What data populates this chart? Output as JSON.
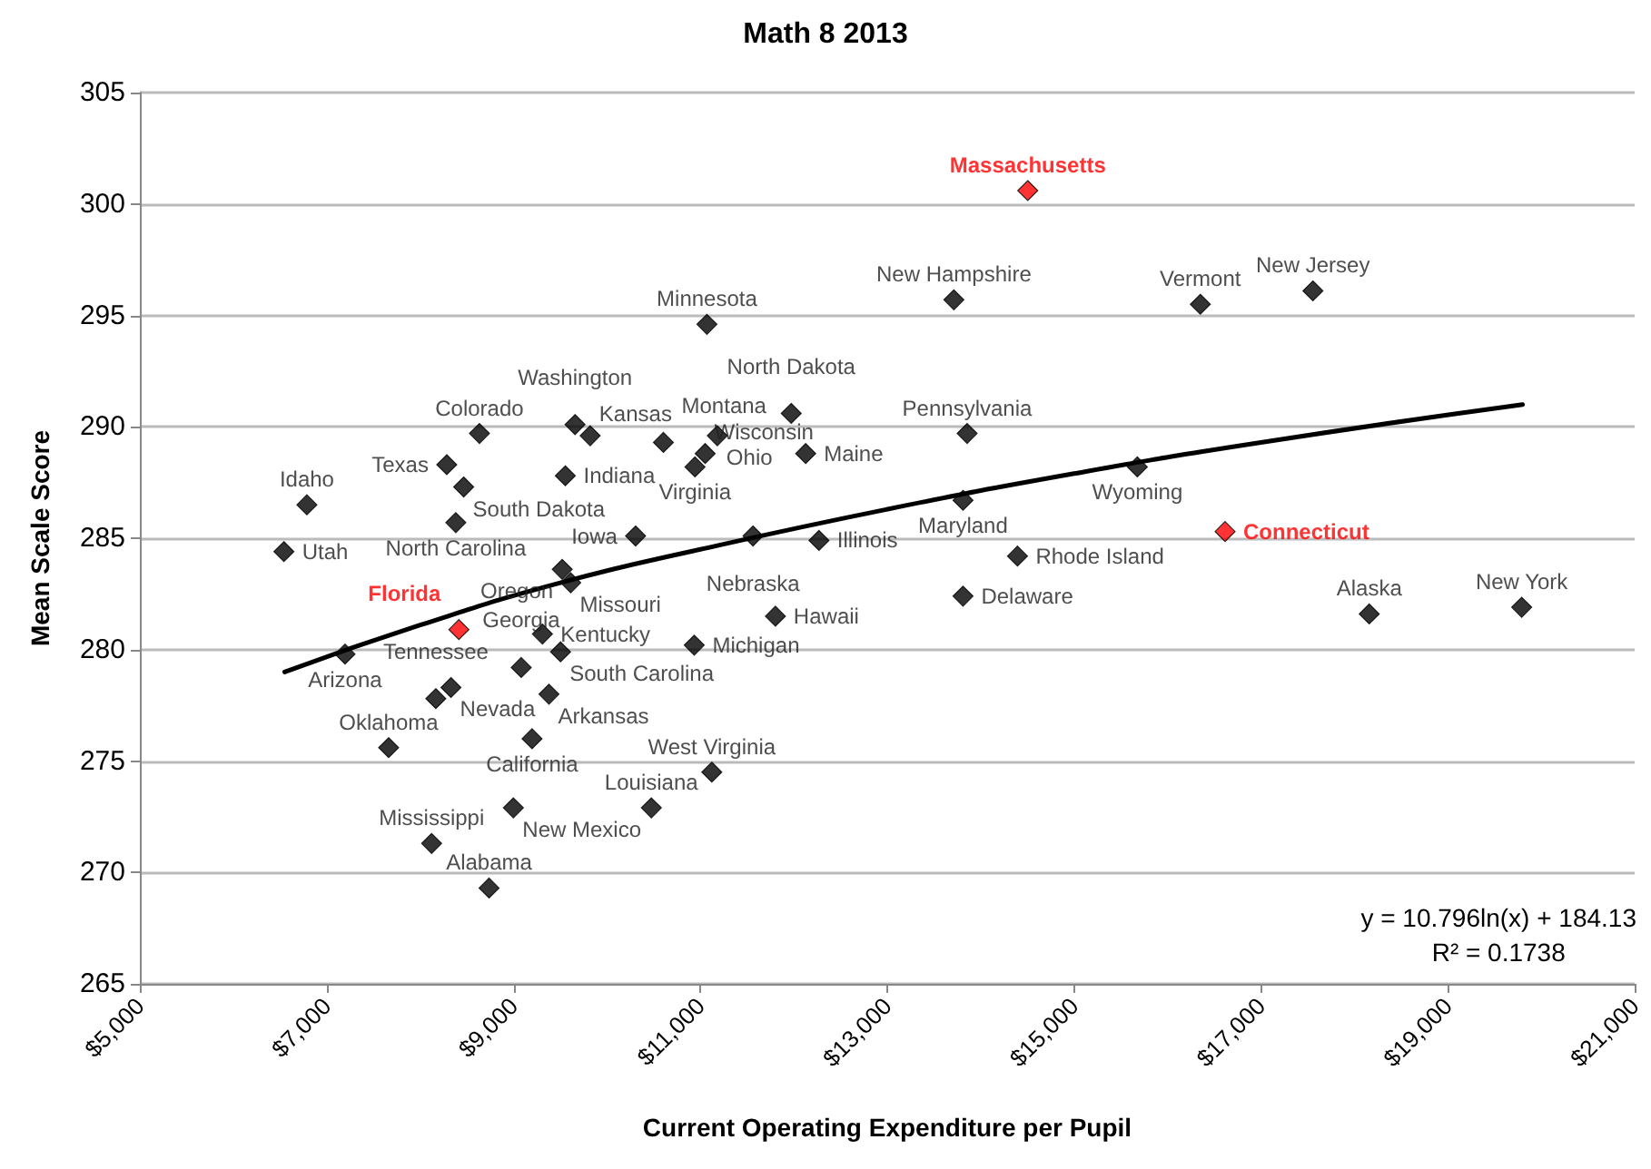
{
  "chart_data": {
    "type": "scatter",
    "title": "Math 8 2013",
    "xlabel": "Current Operating Expenditure per Pupil",
    "ylabel": "Mean Scale Score",
    "xlim": [
      5000,
      21000
    ],
    "xticks": [
      {
        "value": 5000,
        "label": "$5,000"
      },
      {
        "value": 7000,
        "label": "$7,000"
      },
      {
        "value": 9000,
        "label": "$9,000"
      },
      {
        "value": 11000,
        "label": "$11,000"
      },
      {
        "value": 13000,
        "label": "$13,000"
      },
      {
        "value": 15000,
        "label": "$15,000"
      },
      {
        "value": 17000,
        "label": "$17,000"
      },
      {
        "value": 19000,
        "label": "$19,000"
      },
      {
        "value": 21000,
        "label": "$21,000"
      }
    ],
    "ylim": [
      265,
      305
    ],
    "yticks": [
      265,
      270,
      275,
      280,
      285,
      290,
      295,
      300,
      305
    ],
    "grid": "y",
    "marker": "diamond",
    "series": [
      {
        "color": "#000000",
        "x": [
          6542,
          6788,
          7196,
          7663,
          8123,
          8738,
          8168,
          8330,
          8285,
          8635,
          8466,
          8382,
          9554,
          9658,
          9820,
          10604,
          10942,
          11051,
          11181,
          11070,
          11972,
          12127,
          10306,
          11563,
          12269,
          9521,
          9612,
          9309,
          9503,
          9082,
          9379,
          9198,
          8998,
          10934,
          11803,
          11122,
          10475,
          13713,
          16351,
          17556,
          13855,
          15677,
          13811,
          14394,
          13811,
          18159,
          19791
        ],
        "values": [
          284.4,
          286.5,
          279.8,
          275.6,
          271.3,
          269.3,
          277.8,
          278.3,
          288.3,
          289.7,
          287.3,
          285.7,
          287.8,
          290.1,
          289.6,
          289.3,
          288.2,
          288.8,
          289.6,
          294.6,
          290.6,
          288.8,
          285.1,
          285.1,
          284.9,
          283.6,
          283.0,
          280.7,
          279.9,
          279.2,
          278.0,
          276.0,
          272.9,
          280.2,
          281.5,
          274.5,
          272.9,
          295.7,
          295.5,
          296.1,
          289.7,
          288.2,
          286.7,
          284.2,
          282.4,
          281.6,
          281.9
        ],
        "value_labels": [
          "Utah",
          "Idaho",
          "Arizona",
          "Oklahoma",
          "Mississippi",
          "Alabama",
          "Tennessee",
          "Nevada",
          "Texas",
          "Colorado",
          "South Dakota",
          "North Carolina",
          "Indiana",
          "Washington",
          "Kansas",
          "Montana",
          "Virginia",
          "Wisconsin",
          "Ohio",
          "Minnesota",
          "North Dakota",
          "Maine",
          "Iowa",
          "Nebraska",
          "Illinois",
          "Oregon",
          "Missouri",
          "Kentucky",
          "South Carolina",
          "Georgia",
          "Arkansas",
          "California",
          "New Mexico",
          "Michigan",
          "Hawaii",
          "West Virginia",
          "Louisiana",
          "New Hampshire",
          "Vermont",
          "New Jersey",
          "Pennsylvania",
          "Wyoming",
          "Maryland",
          "Rhode Island",
          "Delaware",
          "Alaska",
          "New York"
        ]
      },
      {
        "color": "#ff0000",
        "x": [
          8415,
          14504,
          16616
        ],
        "values": [
          280.9,
          300.6,
          285.3
        ],
        "value_labels": [
          "Florida",
          "Massachusetts",
          "Connecticut"
        ]
      },
      {
        "type": "line",
        "color": "#000000",
        "marker": "none",
        "x": [
          6550,
          8000,
          9500,
          11000,
          13000,
          15000,
          17000,
          19800
        ],
        "values": [
          279.0,
          281.1,
          283.0,
          284.5,
          286.3,
          287.9,
          289.3,
          291.0
        ]
      }
    ],
    "annotations": [
      "y = 10.796ln(x) + 184.13\nR² = 0.1738"
    ]
  }
}
